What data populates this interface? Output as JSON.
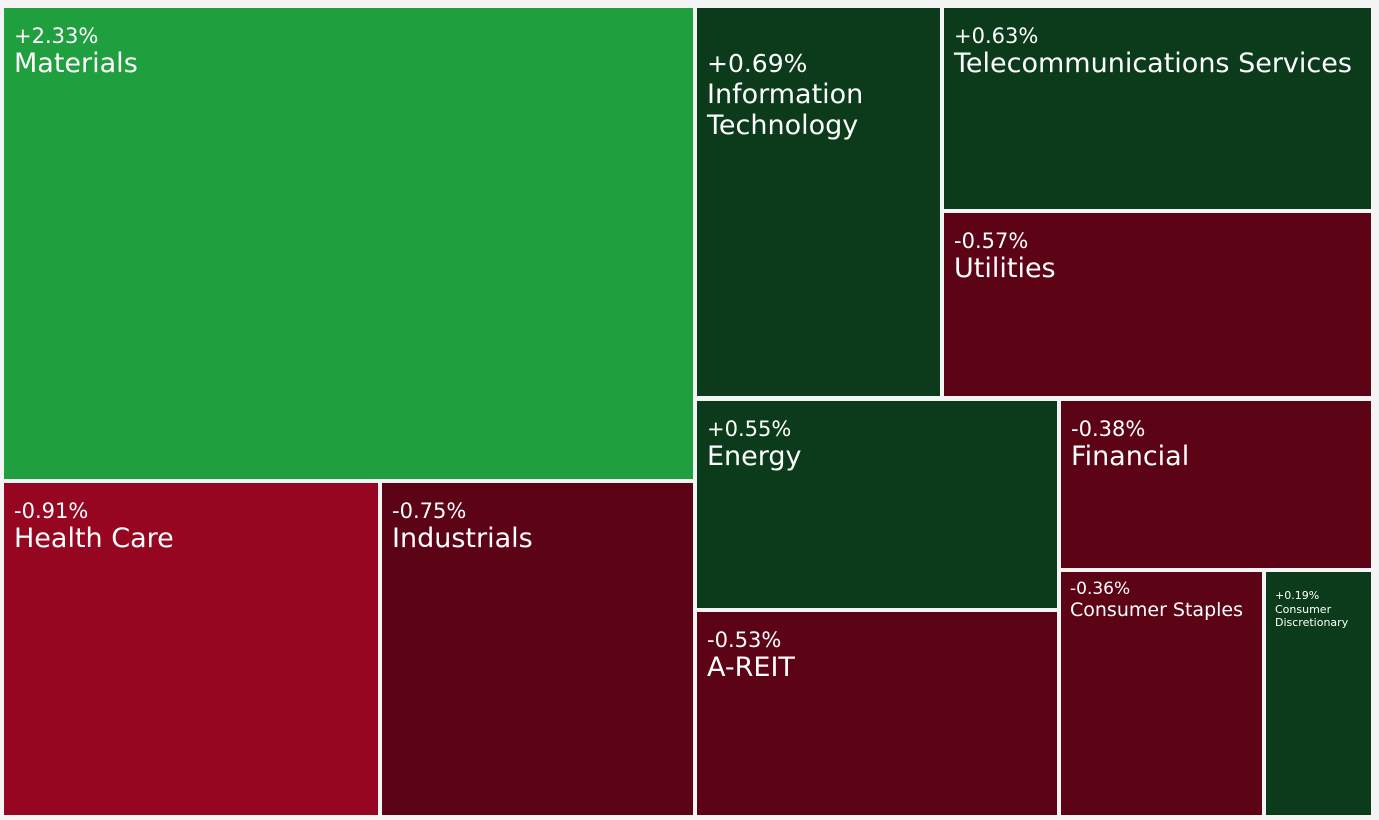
{
  "colors": {
    "strong_positive": "#1f9f3d",
    "positive": "#0b3b1a",
    "strong_negative": "#970621",
    "negative": "#5c0316"
  },
  "chart_data": {
    "type": "treemap",
    "title": "",
    "sectors": [
      {
        "name": "Materials",
        "label": "+2.33%",
        "value": 2.33,
        "color": "#1f9f3d"
      },
      {
        "name": "Information Technology",
        "label": "+0.69%",
        "value": 0.69,
        "color": "#0b3b1a"
      },
      {
        "name": "Telecommunications Services",
        "label": "+0.63%",
        "value": 0.63,
        "color": "#0b3b1a"
      },
      {
        "name": "Utilities",
        "label": "-0.57%",
        "value": -0.57,
        "color": "#5c0316"
      },
      {
        "name": "Health Care",
        "label": "-0.91%",
        "value": -0.91,
        "color": "#970621"
      },
      {
        "name": "Industrials",
        "label": "-0.75%",
        "value": -0.75,
        "color": "#5c0316"
      },
      {
        "name": "Energy",
        "label": "+0.55%",
        "value": 0.55,
        "color": "#0b3b1a"
      },
      {
        "name": "Financial",
        "label": "-0.38%",
        "value": -0.38,
        "color": "#5c0316"
      },
      {
        "name": "A-REIT",
        "label": "-0.53%",
        "value": -0.53,
        "color": "#5c0316"
      },
      {
        "name": "Consumer Staples",
        "label": "-0.36%",
        "value": -0.36,
        "color": "#5c0316"
      },
      {
        "name": "Consumer Discretionary",
        "label": "+0.19%",
        "value": 0.19,
        "color": "#0b3b1a"
      }
    ]
  }
}
